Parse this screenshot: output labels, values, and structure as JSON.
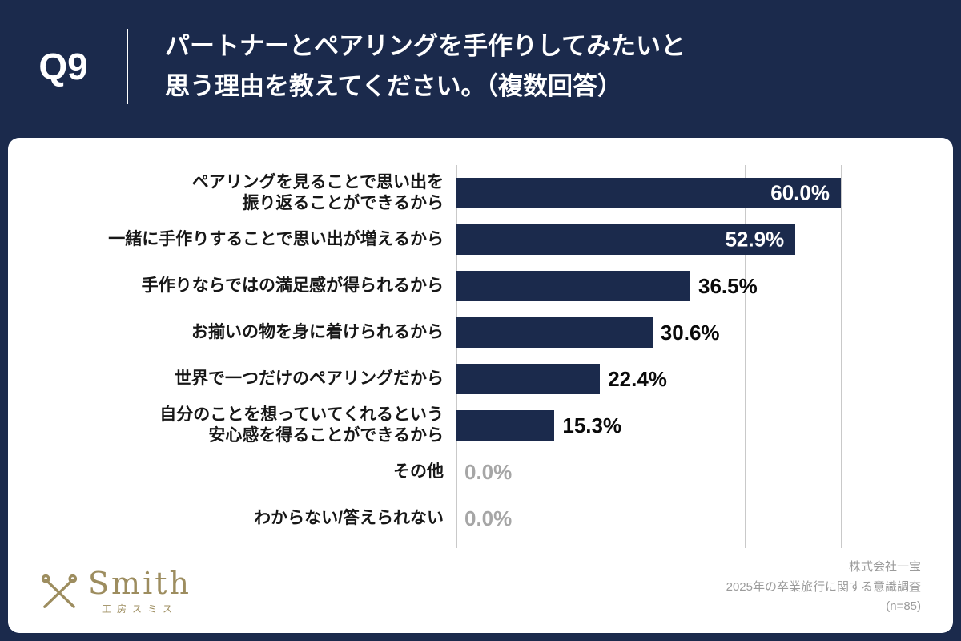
{
  "header": {
    "question_no": "Q9",
    "title": "パートナーとペアリングを手作りしてみたいと\n思う理由を教えてください。（複数回答）"
  },
  "chart_data": {
    "type": "bar",
    "orientation": "horizontal",
    "title": "",
    "xlabel": "",
    "ylabel": "",
    "xlim": [
      0,
      60
    ],
    "gridlines_pct": [
      0,
      15,
      30,
      45,
      60
    ],
    "legend": "none",
    "categories": [
      "ペアリングを見ることで思い出を\n振り返ることができるから",
      "一緒に手作りすることで思い出が増えるから",
      "手作りならではの満足感が得られるから",
      "お揃いの物を身に着けられるから",
      "世界で一つだけのペアリングだから",
      "自分のことを想っていてくれるという\n安心感を得ることができるから",
      "その他",
      "わからない/答えられない"
    ],
    "values": [
      60.0,
      52.9,
      36.5,
      30.6,
      22.4,
      15.3,
      0.0,
      0.0
    ],
    "value_labels": [
      "60.0%",
      "52.9%",
      "36.5%",
      "30.6%",
      "22.4%",
      "15.3%",
      "0.0%",
      "0.0%"
    ]
  },
  "footer": {
    "logo_text": "Smith",
    "logo_subtext": "工房スミス",
    "credit": "株式会社一宝\n2025年の卒業旅行に関する意識調査\n(n=85)"
  },
  "colors": {
    "navy": "#1b2a4c",
    "bar": "#1b2a4c",
    "grid": "#c9c9c9",
    "zero_label": "#a6a6a6",
    "credit_text": "#9b9b9b",
    "logo_gold": "#9d8d5f"
  }
}
